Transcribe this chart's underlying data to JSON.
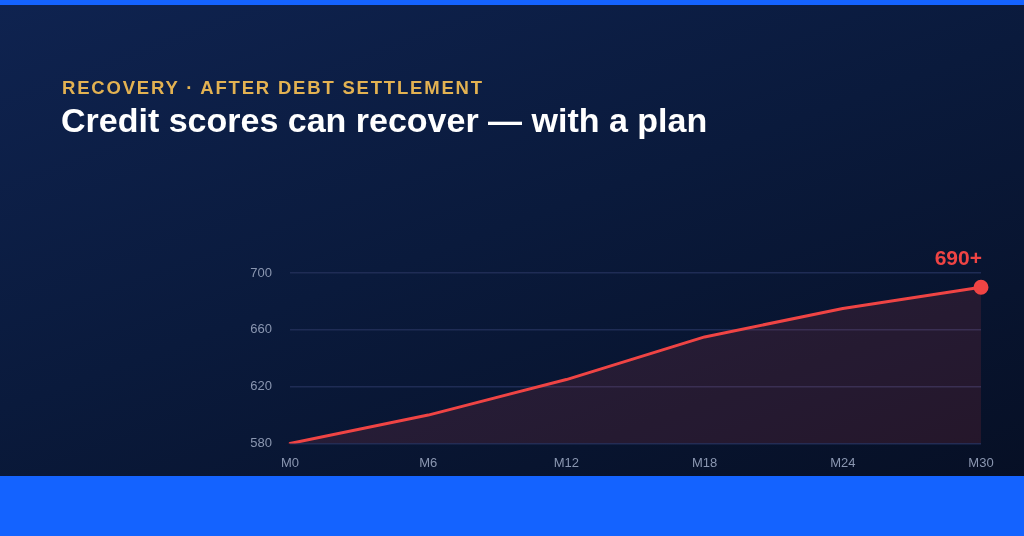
{
  "chart_data": {
    "type": "area",
    "subtitle": "RECOVERY · AFTER DEBT SETTLEMENT",
    "title": "Credit scores can recover — with a plan",
    "categories": [
      "M0",
      "M6",
      "M12",
      "M18",
      "M24",
      "M30"
    ],
    "series": [
      {
        "color": "#ef4444",
        "values": [
          580,
          600,
          625,
          655,
          675,
          690
        ]
      },
      {
        "type": "scatter",
        "marker": "circle",
        "color": "#ef4444",
        "x": [
          "M30"
        ],
        "values": [
          690
        ]
      }
    ],
    "ylim": [
      580,
      700
    ],
    "yticks": [
      580,
      620,
      660,
      700
    ],
    "grid": "y",
    "marker": "none",
    "annotations": [
      {
        "text": "690+",
        "x": "M30",
        "y": 690
      }
    ]
  }
}
